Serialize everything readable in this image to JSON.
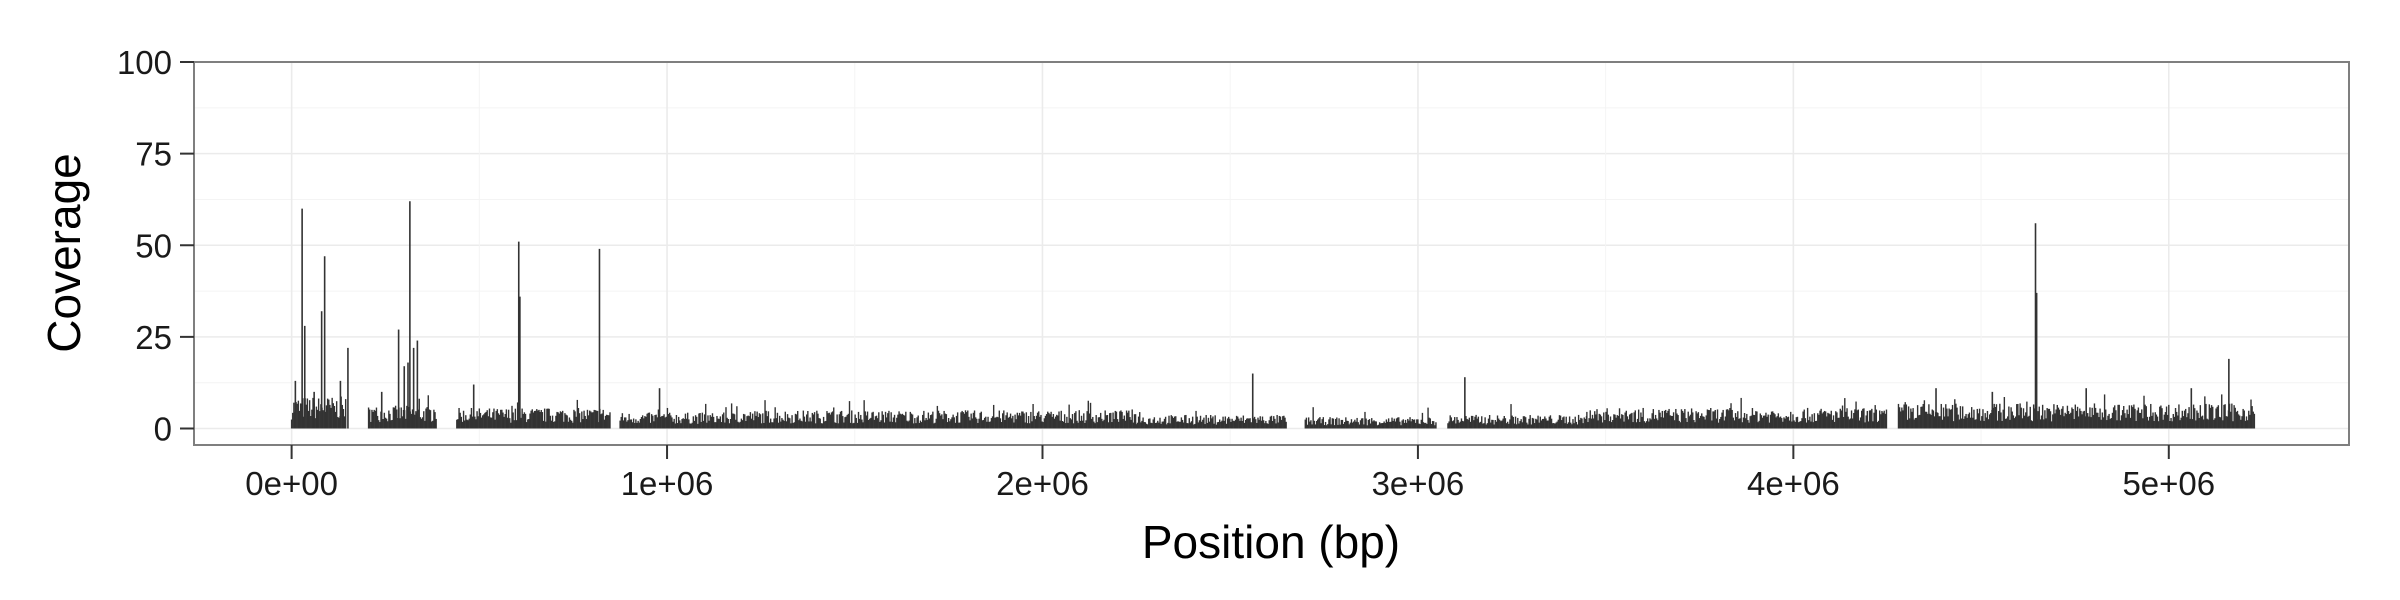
{
  "chart_data": {
    "type": "bar",
    "title": "",
    "xlabel": "Position (bp)",
    "ylabel": "Coverage",
    "xlim": [
      -260000,
      5480000
    ],
    "ylim": [
      -4.5,
      100
    ],
    "x_ticks": [
      0,
      1000000,
      2000000,
      3000000,
      4000000,
      5000000
    ],
    "x_tick_labels": [
      "0e+00",
      "1e+06",
      "2e+06",
      "3e+06",
      "4e+06",
      "5e+06"
    ],
    "y_ticks": [
      0,
      25,
      50,
      75,
      100
    ],
    "y_tick_labels": [
      "0",
      "25",
      "50",
      "75",
      "100"
    ],
    "grid": true,
    "theme": "bw",
    "bar_color": "#333333",
    "grid_color": "#ebebeb",
    "panel_border_color": "#7f7f7f",
    "segments": [
      {
        "start": 0,
        "end": 145000,
        "base": 7
      },
      {
        "start": 205000,
        "end": 385000,
        "base": 5
      },
      {
        "start": 440000,
        "end": 850000,
        "base": 4.5
      },
      {
        "start": 875000,
        "end": 1180000,
        "base": 3.5
      },
      {
        "start": 1180000,
        "end": 2250000,
        "base": 4
      },
      {
        "start": 2250000,
        "end": 2650000,
        "base": 3
      },
      {
        "start": 2700000,
        "end": 3050000,
        "base": 2.5
      },
      {
        "start": 3080000,
        "end": 3450000,
        "base": 3
      },
      {
        "start": 3450000,
        "end": 4250000,
        "base": 4.5
      },
      {
        "start": 4280000,
        "end": 5230000,
        "base": 5.5
      }
    ],
    "peaks": [
      {
        "x": 10000,
        "y": 13
      },
      {
        "x": 28000,
        "y": 60
      },
      {
        "x": 35000,
        "y": 28
      },
      {
        "x": 60000,
        "y": 10
      },
      {
        "x": 80000,
        "y": 32
      },
      {
        "x": 88000,
        "y": 47
      },
      {
        "x": 130000,
        "y": 13
      },
      {
        "x": 150000,
        "y": 22
      },
      {
        "x": 240000,
        "y": 10
      },
      {
        "x": 285000,
        "y": 27
      },
      {
        "x": 300000,
        "y": 17
      },
      {
        "x": 310000,
        "y": 18
      },
      {
        "x": 315000,
        "y": 62
      },
      {
        "x": 325000,
        "y": 22
      },
      {
        "x": 335000,
        "y": 24
      },
      {
        "x": 485000,
        "y": 12
      },
      {
        "x": 605000,
        "y": 51
      },
      {
        "x": 608000,
        "y": 36
      },
      {
        "x": 820000,
        "y": 49
      },
      {
        "x": 980000,
        "y": 11
      },
      {
        "x": 2560000,
        "y": 15
      },
      {
        "x": 3125000,
        "y": 14
      },
      {
        "x": 4380000,
        "y": 11
      },
      {
        "x": 4530000,
        "y": 10
      },
      {
        "x": 4645000,
        "y": 56
      },
      {
        "x": 4648000,
        "y": 37
      },
      {
        "x": 4780000,
        "y": 11
      },
      {
        "x": 5060000,
        "y": 11
      },
      {
        "x": 5160000,
        "y": 19
      }
    ]
  }
}
